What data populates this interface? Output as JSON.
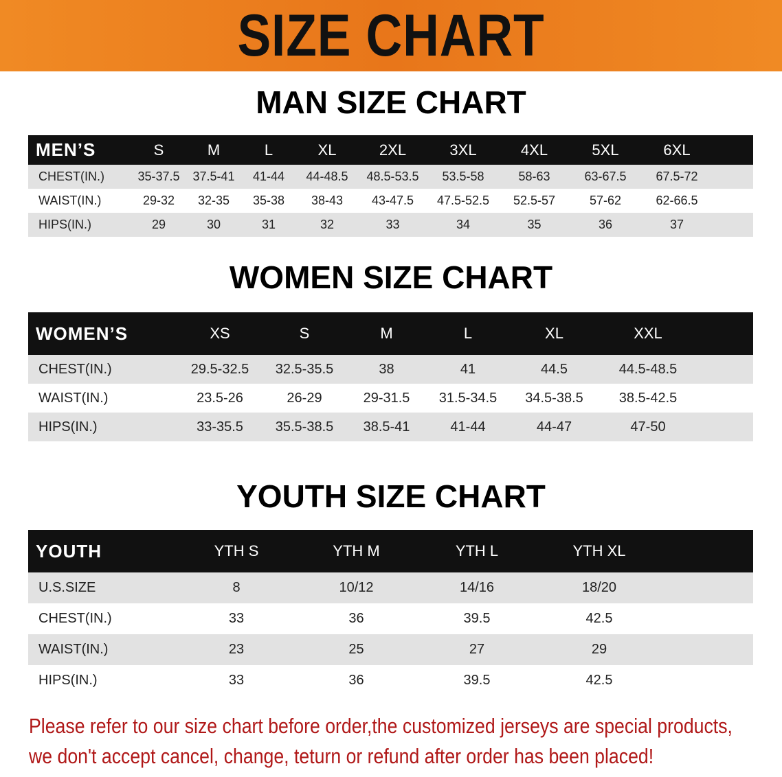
{
  "banner_title": "SIZE CHART",
  "men": {
    "title": "MAN SIZE CHART",
    "header": [
      "MEN’S",
      "S",
      "M",
      "L",
      "XL",
      "2XL",
      "3XL",
      "4XL",
      "5XL",
      "6XL"
    ],
    "rows": [
      [
        "CHEST(IN.)",
        "35-37.5",
        "37.5-41",
        "41-44",
        "44-48.5",
        "48.5-53.5",
        "53.5-58",
        "58-63",
        "63-67.5",
        "67.5-72"
      ],
      [
        "WAIST(IN.)",
        "29-32",
        "32-35",
        "35-38",
        "38-43",
        "43-47.5",
        "47.5-52.5",
        "52.5-57",
        "57-62",
        "62-66.5"
      ],
      [
        "HIPS(IN.)",
        "29",
        "30",
        "31",
        "32",
        "33",
        "34",
        "35",
        "36",
        "37"
      ]
    ]
  },
  "women": {
    "title": "WOMEN SIZE CHART",
    "header": [
      "WOMEN’S",
      "XS",
      "S",
      "M",
      "L",
      "XL",
      "XXL"
    ],
    "rows": [
      [
        "CHEST(IN.)",
        "29.5-32.5",
        "32.5-35.5",
        "38",
        "41",
        "44.5",
        "44.5-48.5"
      ],
      [
        "WAIST(IN.)",
        "23.5-26",
        "26-29",
        "29-31.5",
        "31.5-34.5",
        "34.5-38.5",
        "38.5-42.5"
      ],
      [
        "HIPS(IN.)",
        "33-35.5",
        "35.5-38.5",
        "38.5-41",
        "41-44",
        "44-47",
        "47-50"
      ]
    ]
  },
  "youth": {
    "title": "YOUTH SIZE CHART",
    "header": [
      "YOUTH",
      "YTH S",
      "YTH M",
      "YTH L",
      "YTH XL"
    ],
    "rows": [
      [
        "U.S.SIZE",
        "8",
        "10/12",
        "14/16",
        "18/20"
      ],
      [
        "CHEST(IN.)",
        "33",
        "36",
        "39.5",
        "42.5"
      ],
      [
        "WAIST(IN.)",
        "23",
        "25",
        "27",
        "29"
      ],
      [
        "HIPS(IN.)",
        "33",
        "36",
        "39.5",
        "42.5"
      ]
    ]
  },
  "note": {
    "line1": "Please refer to our size chart before order,the customized jerseys are special products,",
    "line2": "we don't accept cancel, change, teturn or refund after order has been placed!"
  },
  "colors": {
    "banner": "#e8761a",
    "header_row": "#111111",
    "stripe": "#e2e2e2",
    "note": "#b01818"
  }
}
